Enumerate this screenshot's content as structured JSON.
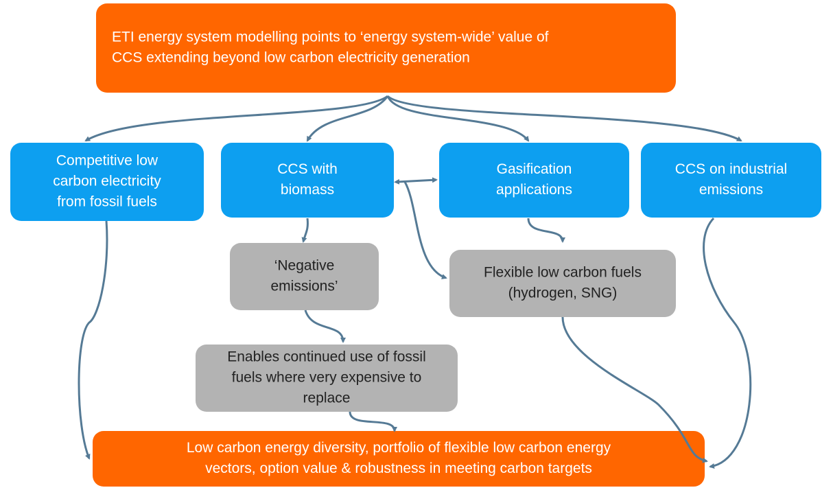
{
  "nodes": [
    {
      "id": "top",
      "lines": [
        "ETI energy system modelling points to ‘energy system-wide’ value of",
        "CCS extending beyond low carbon electricity generation"
      ]
    },
    {
      "id": "fossil",
      "lines": [
        "Competitive low",
        "carbon electricity",
        "from fossil fuels"
      ]
    },
    {
      "id": "biomass",
      "lines": [
        "CCS with",
        "biomass"
      ]
    },
    {
      "id": "gasification",
      "lines": [
        "Gasification",
        "applications"
      ]
    },
    {
      "id": "industrial",
      "lines": [
        "CCS on industrial",
        "emissions"
      ]
    },
    {
      "id": "negative",
      "lines": [
        "‘Negative",
        "emissions’"
      ]
    },
    {
      "id": "fuels",
      "lines": [
        "Flexible low carbon fuels",
        "(hydrogen, SNG)"
      ]
    },
    {
      "id": "continued",
      "lines": [
        "Enables continued use of fossil",
        "fuels where very expensive to",
        "replace"
      ]
    },
    {
      "id": "bottom",
      "lines": [
        "Low carbon energy diversity, portfolio of flexible low carbon energy",
        "vectors, option value & robustness in meeting carbon targets"
      ]
    }
  ]
}
